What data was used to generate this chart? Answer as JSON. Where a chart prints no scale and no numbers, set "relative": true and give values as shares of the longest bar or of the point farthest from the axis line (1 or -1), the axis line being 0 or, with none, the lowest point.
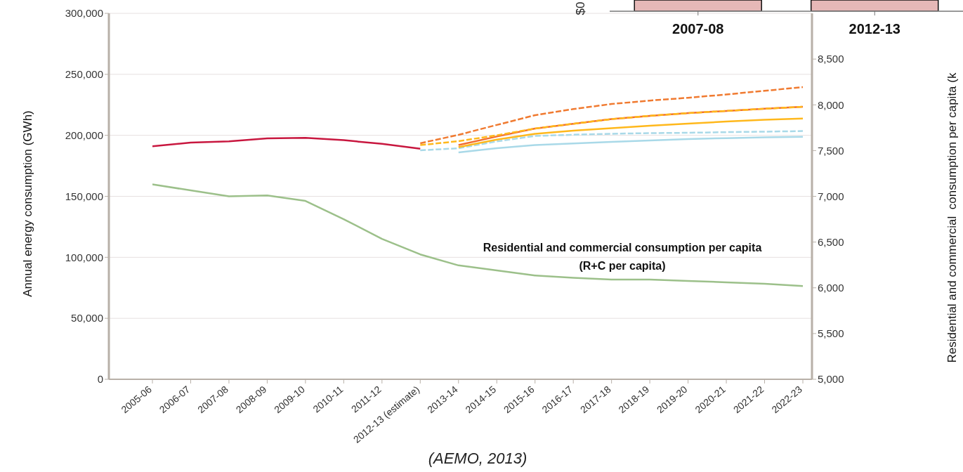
{
  "chart_data": [
    {
      "type": "line",
      "categories": [
        "2005-06",
        "2006-07",
        "2007-08",
        "2008-09",
        "2009-10",
        "2010-11",
        "2011-12",
        "2012-13 (estimate)",
        "2013-14",
        "2014-15",
        "2015-16",
        "2016-17",
        "2017-18",
        "2018-19",
        "2019-20",
        "2020-21",
        "2021-22",
        "2022-23"
      ],
      "ylabel": "Annual energy consumption (GWh)",
      "y2label": "Residential and commercial  consumption per capita (k",
      "ylim": [
        0,
        300000
      ],
      "yticks": [
        0,
        {
          "value": 50000,
          "label": "50,000"
        },
        {
          "value": 100000,
          "label": "100,000"
        },
        {
          "value": 150000,
          "label": "150,000"
        },
        {
          "value": 200000,
          "label": "200,000"
        },
        {
          "value": 250000,
          "label": "250,000"
        },
        {
          "value": 300000,
          "label": "300,000"
        }
      ],
      "y2lim": [
        5000,
        9000
      ],
      "y2ticks": [
        {
          "value": 5000,
          "label": "5,000"
        },
        {
          "value": 5500,
          "label": "5,500"
        },
        {
          "value": 6000,
          "label": "6,000"
        },
        {
          "value": 6500,
          "label": "6,500"
        },
        {
          "value": 7000,
          "label": "7,000"
        },
        {
          "value": 7500,
          "label": "7,500"
        },
        {
          "value": 8000,
          "label": "8,000"
        },
        {
          "value": 8500,
          "label": "8,500"
        }
      ],
      "grid": "y",
      "series": [
        {
          "color": "#c8173f",
          "values": [
            191000,
            194000,
            195000,
            197500,
            198000,
            196000,
            193000,
            189000,
            null,
            null,
            null,
            null,
            null,
            null,
            null,
            null,
            null,
            null
          ]
        },
        {
          "color": "#9cc08a",
          "axis": "y2",
          "values": [
            7130,
            7065,
            7000,
            7010,
            6950,
            6750,
            6535,
            6365,
            6245,
            6190,
            6135,
            6110,
            6090,
            6090,
            6075,
            6060,
            6045,
            6020
          ]
        },
        {
          "color": "#a9d9e8",
          "line_style": "dashed",
          "values": [
            null,
            null,
            null,
            null,
            null,
            null,
            null,
            187700,
            189400,
            195000,
            199500,
            200500,
            201300,
            201800,
            202100,
            202600,
            203000,
            203500
          ]
        },
        {
          "color": "#a9d9e8",
          "line_style": "solid",
          "values": [
            null,
            null,
            null,
            null,
            null,
            null,
            null,
            null,
            186000,
            189500,
            192000,
            193400,
            194600,
            195800,
            197000,
            197700,
            198300,
            198800
          ]
        },
        {
          "color": "#ffb81c",
          "line_style": "solid",
          "values": [
            null,
            null,
            null,
            null,
            null,
            null,
            null,
            null,
            190300,
            196500,
            201300,
            203800,
            205800,
            207800,
            209600,
            211300,
            212700,
            213800
          ]
        },
        {
          "color": "#f26d2f",
          "line_style": "solid",
          "values": [
            null,
            null,
            null,
            null,
            null,
            null,
            null,
            null,
            192000,
            199000,
            205600,
            209500,
            213300,
            216000,
            218200,
            220000,
            221800,
            223400
          ]
        },
        {
          "color": "#ffb81c",
          "line_style": "dashed",
          "values": [
            null,
            null,
            null,
            null,
            null,
            null,
            null,
            192000,
            195200,
            200000,
            205600,
            209500,
            213300,
            216000,
            218200,
            220000,
            221800,
            223400
          ]
        },
        {
          "color": "#f07a30",
          "line_style": "dashed",
          "values": [
            null,
            null,
            null,
            null,
            null,
            null,
            null,
            193500,
            200400,
            208500,
            216500,
            221500,
            225700,
            228500,
            230800,
            233500,
            236500,
            239500
          ]
        }
      ],
      "annotations": [
        "Residential and commercial consumption per capita\n(R+C per capita)",
        "(AEMO, 2013)"
      ]
    },
    {
      "type": "bar",
      "categories": [
        "2007-08",
        "2012-13"
      ],
      "relative": true,
      "values": [
        1,
        1
      ],
      "color": "#e6b8b7",
      "annotations": [
        "$0"
      ]
    }
  ]
}
